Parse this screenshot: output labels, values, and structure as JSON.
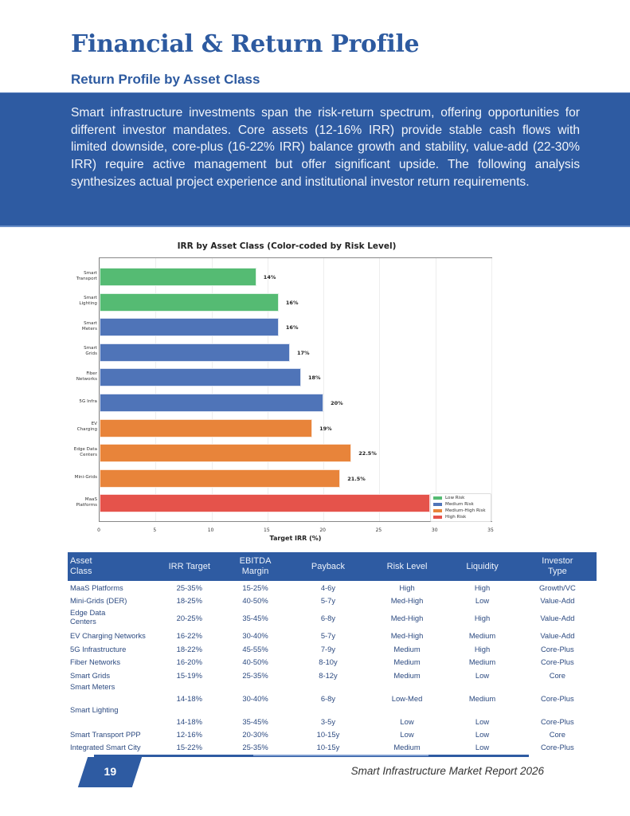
{
  "header": {
    "title": "Financial & Return Profile",
    "subtitle": "Return Profile by Asset Class"
  },
  "intro": {
    "text": "Smart infrastructure investments span the risk-return spectrum, offering opportunities for different investor mandates. Core assets (12-16% IRR) provide stable cash flows with limited downside, core-plus (16-22% IRR) balance growth and stability, value-add (22-30% IRR) require active management but offer significant upside. The following analysis synthesizes actual project experience and institutional investor return requirements."
  },
  "colors": {
    "brand": "#2e5ba2",
    "low_risk": "#55bb73",
    "medium_risk": "#4f74b8",
    "medium_high_risk": "#e8843a",
    "high_risk": "#e5534b"
  },
  "chart_data": {
    "type": "bar",
    "orientation": "horizontal",
    "title": "IRR by Asset Class (Color-coded by Risk Level)",
    "xlabel": "Target IRR (%)",
    "ylabel": "",
    "xlim": [
      0,
      35
    ],
    "xticks": [
      "0",
      "5",
      "10",
      "15",
      "20",
      "25",
      "30",
      "35"
    ],
    "grid": "vertical",
    "legend_position": "lower right",
    "legend": [
      "Low Risk",
      "Medium Risk",
      "Medium-High Risk",
      "High Risk"
    ],
    "categories": [
      "Smart Transport",
      "Smart Lighting",
      "Smart Meters",
      "Smart Grids",
      "Fiber Networks",
      "5G Infra",
      "EV Charging",
      "Edge Data Centers",
      "Mini-Grids",
      "MaaS Platforms"
    ],
    "category_labels": [
      [
        "Smart",
        "Transport"
      ],
      [
        "Smart",
        "Lighting"
      ],
      [
        "Smart",
        "Meters"
      ],
      [
        "Smart",
        "Grids"
      ],
      [
        "Fiber",
        "Networks"
      ],
      [
        "5G Infra"
      ],
      [
        "EV",
        "Charging"
      ],
      [
        "Edge Data",
        "Centers"
      ],
      [
        "Mini-Grids"
      ],
      [
        "MaaS",
        "Platforms"
      ]
    ],
    "values": [
      14,
      16,
      16,
      17,
      18,
      20,
      19,
      22.5,
      21.5,
      30
    ],
    "value_labels": [
      "14%",
      "16%",
      "16%",
      "17%",
      "18%",
      "20%",
      "19%",
      "22.5%",
      "21.5%",
      "30%"
    ],
    "risk": [
      "Low Risk",
      "Low Risk",
      "Medium Risk",
      "Medium Risk",
      "Medium Risk",
      "Medium Risk",
      "Medium-High Risk",
      "Medium-High Risk",
      "Medium-High Risk",
      "High Risk"
    ]
  },
  "table": {
    "headers": [
      [
        "Asset",
        "Class"
      ],
      [
        "IRR Target"
      ],
      [
        "EBITDA",
        "Margin"
      ],
      [
        "Payback"
      ],
      [
        "Risk Level"
      ],
      [
        "Liquidity"
      ],
      [
        "Investor",
        "Type"
      ]
    ],
    "rows": [
      {
        "asset": "MaaS Platforms",
        "irr": "25-35%",
        "ebitda": "15-25%",
        "payback": "4-6y",
        "risk": "High",
        "liquidity": "High",
        "investor": "Growth/VC"
      },
      {
        "asset": "Mini-Grids (DER)",
        "irr": "18-25%",
        "ebitda": "40-50%",
        "payback": "5-7y",
        "risk": "Med-High",
        "liquidity": "Low",
        "investor": "Value-Add"
      },
      {
        "asset": "Edge Data Centers",
        "irr": "20-25%",
        "ebitda": "35-45%",
        "payback": "6-8y",
        "risk": "Med-High",
        "liquidity": "High",
        "investor": "Value-Add"
      },
      {
        "asset": "EV Charging Networks",
        "irr": "16-22%",
        "ebitda": "30-40%",
        "payback": "5-7y",
        "risk": "Med-High",
        "liquidity": "Medium",
        "investor": "Value-Add"
      },
      {
        "asset": "5G Infrastructure",
        "irr": "18-22%",
        "ebitda": "45-55%",
        "payback": "7-9y",
        "risk": "Medium",
        "liquidity": "High",
        "investor": "Core-Plus"
      },
      {
        "asset": "Fiber Networks",
        "irr": "16-20%",
        "ebitda": "40-50%",
        "payback": "8-10y",
        "risk": "Medium",
        "liquidity": "Medium",
        "investor": "Core-Plus"
      },
      {
        "asset": "Smart Grids",
        "irr": "15-19%",
        "ebitda": "25-35%",
        "payback": "8-12y",
        "risk": "Medium",
        "liquidity": "Low",
        "investor": "Core"
      },
      {
        "asset": "Smart Meters",
        "irr": "14-18%",
        "ebitda": "30-40%",
        "payback": "6-8y",
        "risk": "Low-Med",
        "liquidity": "Medium",
        "investor": "Core-Plus"
      },
      {
        "asset": "Smart Lighting",
        "irr": "14-18%",
        "ebitda": "35-45%",
        "payback": "3-5y",
        "risk": "Low",
        "liquidity": "Low",
        "investor": "Core-Plus"
      },
      {
        "asset": "Smart Transport PPP",
        "irr": "12-16%",
        "ebitda": "20-30%",
        "payback": "10-15y",
        "risk": "Low",
        "liquidity": "Low",
        "investor": "Core"
      },
      {
        "asset": "Integrated Smart City",
        "irr": "15-22%",
        "ebitda": "25-35%",
        "payback": "10-15y",
        "risk": "Medium",
        "liquidity": "Low",
        "investor": "Core-Plus"
      }
    ]
  },
  "footer": {
    "page_number": "19",
    "report_title": "Smart Infrastructure Market Report 2026"
  }
}
